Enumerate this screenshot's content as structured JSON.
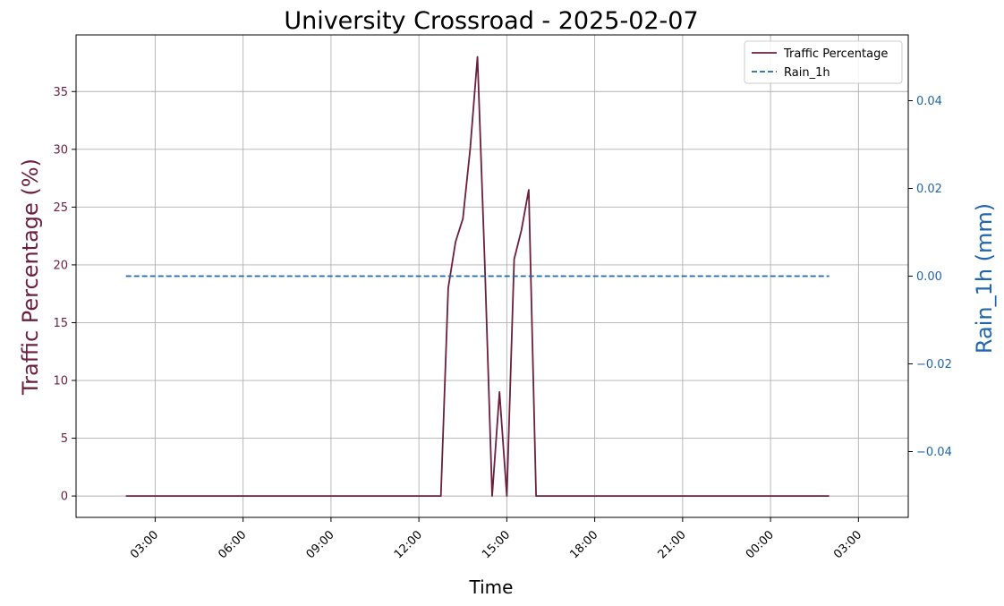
{
  "chart_data": {
    "type": "line",
    "title": "University Crossroad - 2025-02-07",
    "xlabel": "Time",
    "ylabel_left": "Traffic Percentage (%)",
    "ylabel_right": "Rain_1h (mm)",
    "x_tick_labels": [
      "03:00",
      "06:00",
      "09:00",
      "12:00",
      "15:00",
      "18:00",
      "21:00",
      "00:00",
      "03:00"
    ],
    "x_range_hours": [
      0.3,
      28.7
    ],
    "x_ticks_hours": [
      3,
      6,
      9,
      12,
      15,
      18,
      21,
      24,
      27
    ],
    "left_yticks": [
      0,
      5,
      10,
      15,
      20,
      25,
      30,
      35
    ],
    "left_ylim": [
      -1.85,
      39.9
    ],
    "right_yticks": [
      0.04,
      0.02,
      0.0,
      -0.02,
      -0.04
    ],
    "right_tick_labels": [
      "0.04",
      "0.02",
      "0.00",
      "−0.02",
      "−0.04"
    ],
    "right_ylim": [
      -0.055,
      0.055
    ],
    "grid": true,
    "legend_position": "top-right",
    "colors": {
      "traffic": "#6b1f3c",
      "rain": "#2166ac",
      "grid": "#b0b0b0"
    },
    "series": [
      {
        "name": "Traffic Percentage",
        "axis": "left",
        "style": "solid",
        "x": [
          2.0,
          12.75,
          13.0,
          13.25,
          13.5,
          13.75,
          14.0,
          14.25,
          14.5,
          14.75,
          15.0,
          15.25,
          15.5,
          15.75,
          16.0,
          26.0
        ],
        "y": [
          0,
          0,
          18,
          22,
          24,
          30,
          38,
          20,
          0,
          9,
          0,
          20.5,
          23,
          26.5,
          0,
          0
        ]
      },
      {
        "name": "Rain_1h",
        "axis": "right",
        "style": "dashed",
        "x": [
          2.0,
          26.0
        ],
        "y": [
          0.0,
          0.0
        ]
      }
    ]
  }
}
